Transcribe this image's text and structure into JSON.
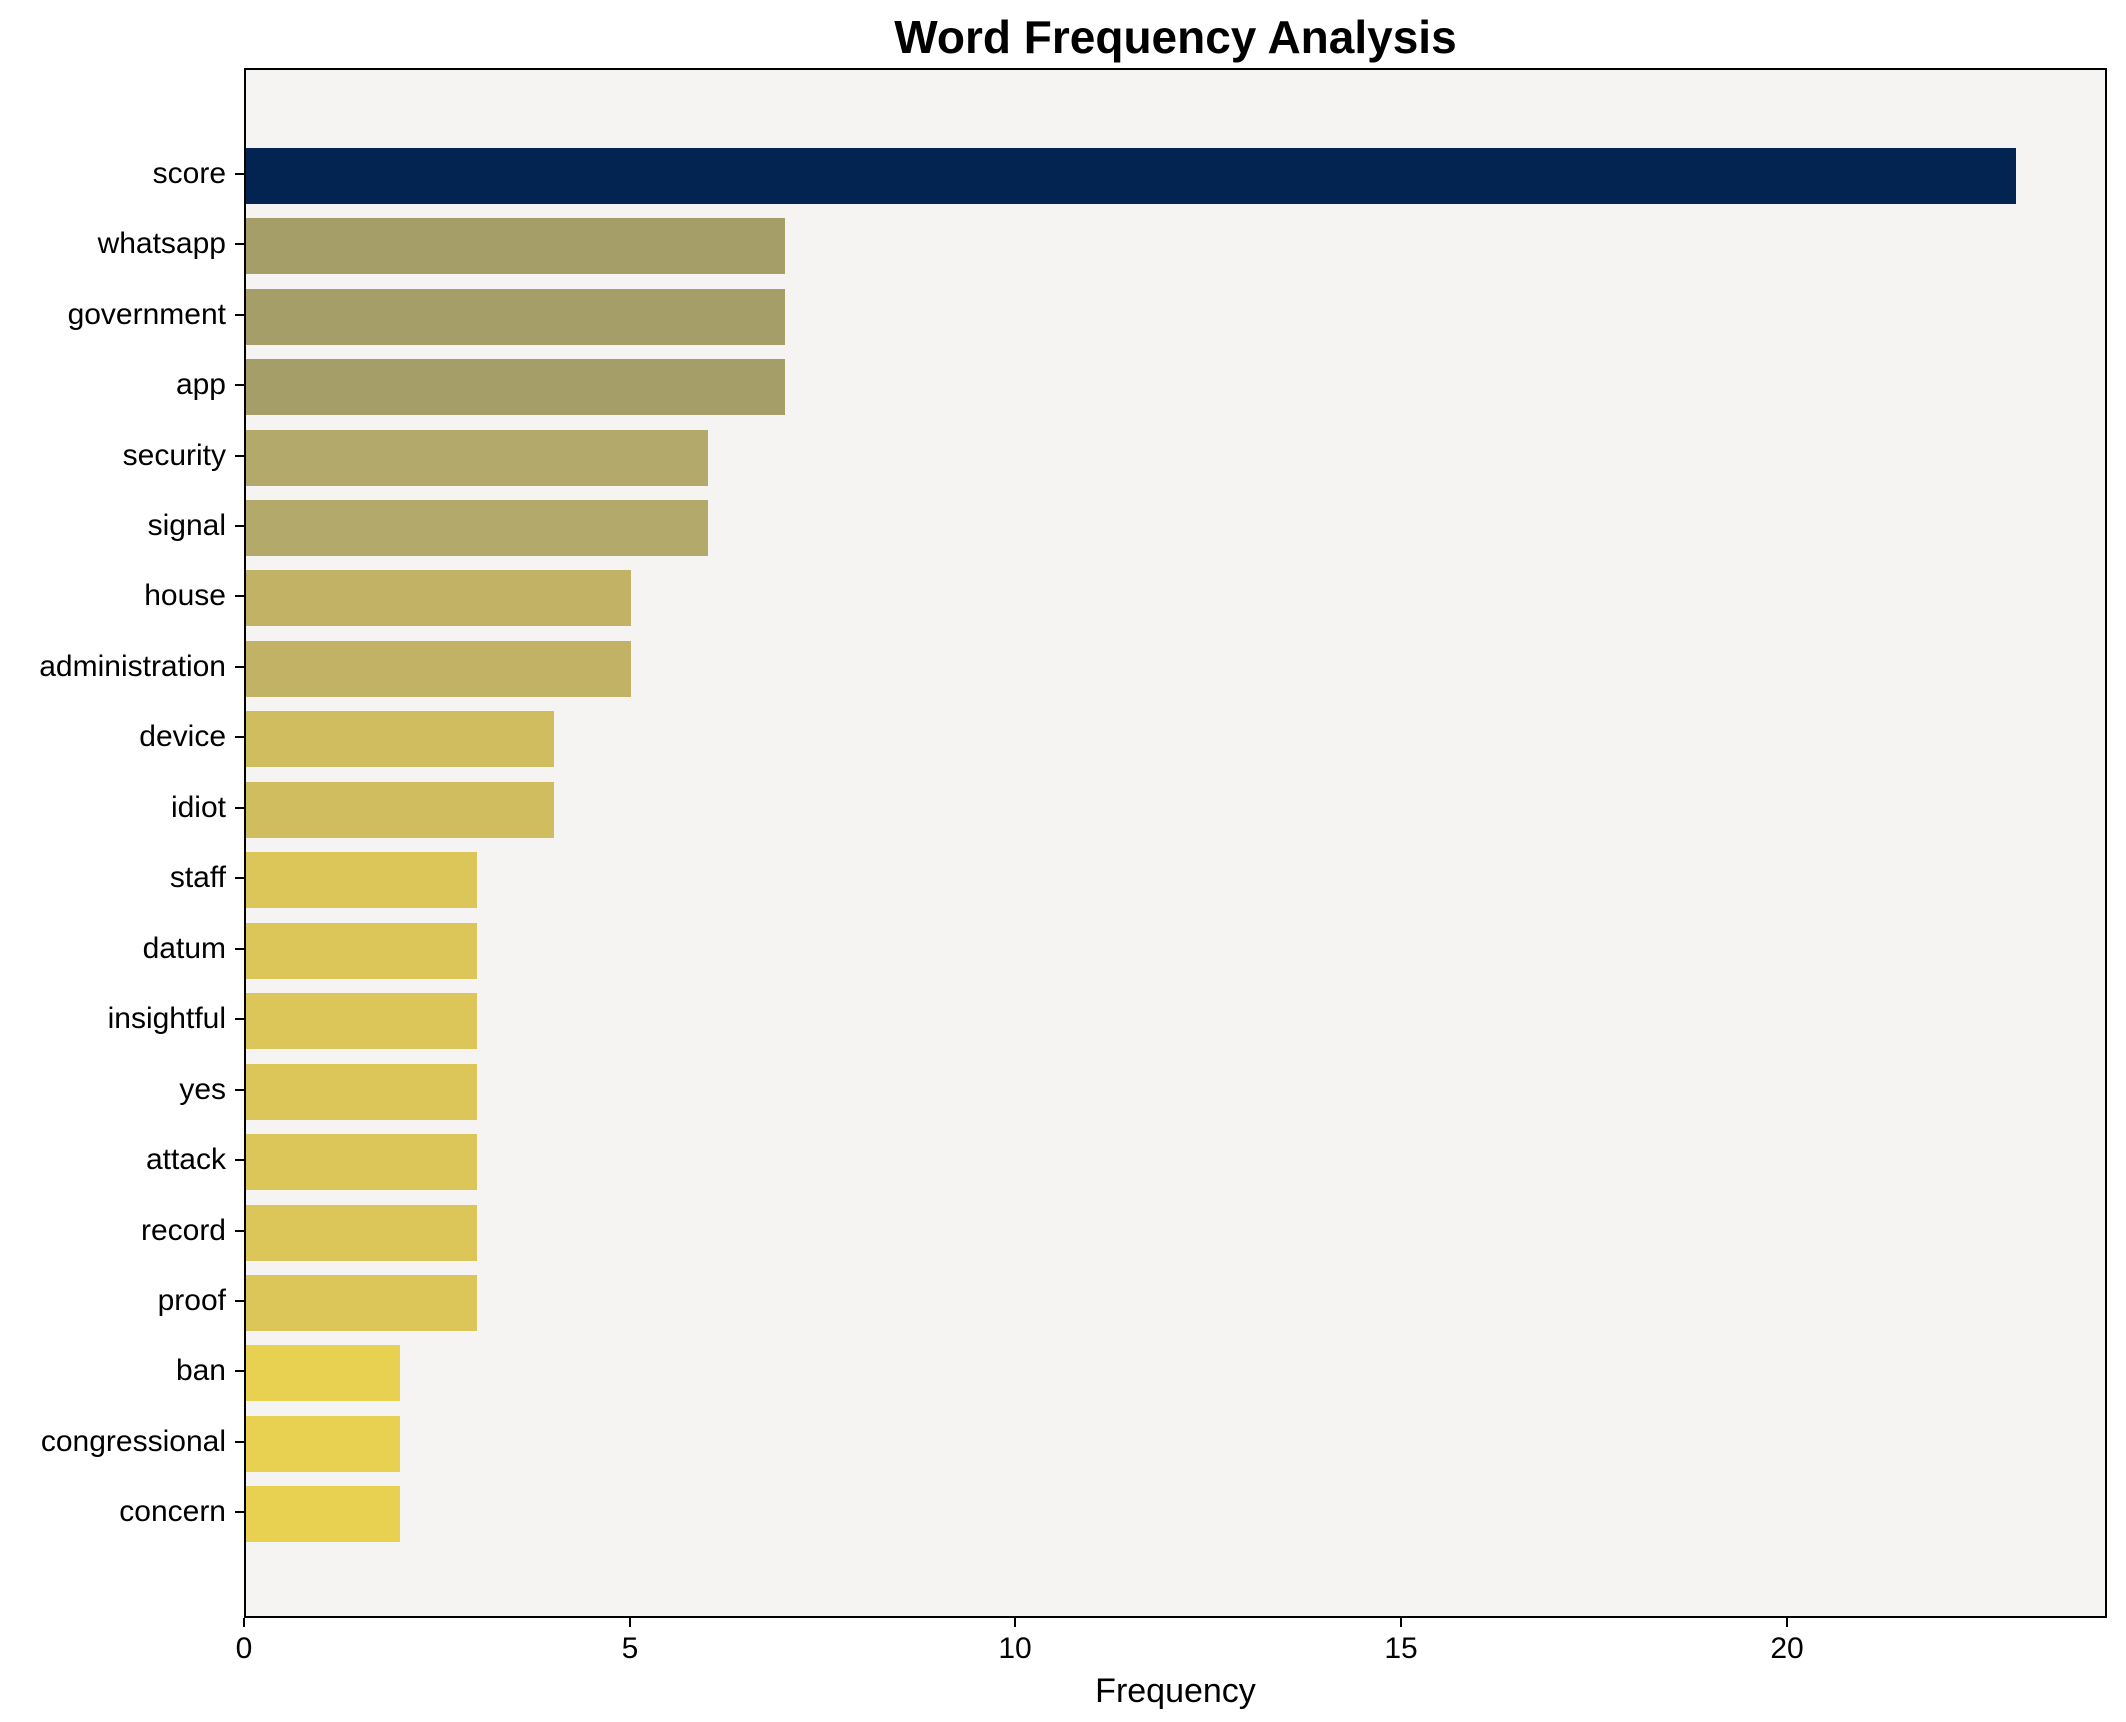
{
  "chart_data": {
    "type": "bar",
    "orientation": "horizontal",
    "title": "Word Frequency Analysis",
    "xlabel": "Frequency",
    "ylabel": "",
    "categories": [
      "score",
      "whatsapp",
      "government",
      "app",
      "security",
      "signal",
      "house",
      "administration",
      "device",
      "idiot",
      "staff",
      "datum",
      "insightful",
      "yes",
      "attack",
      "record",
      "proof",
      "ban",
      "congressional",
      "concern"
    ],
    "values": [
      23,
      7,
      7,
      7,
      6,
      6,
      5,
      5,
      4,
      4,
      3,
      3,
      3,
      3,
      3,
      3,
      3,
      2,
      2,
      2
    ],
    "bar_colors": [
      "#032350",
      "#a69e69",
      "#a69e69",
      "#a69e69",
      "#b3a96b",
      "#b3a96b",
      "#c1b266",
      "#c1b266",
      "#cfbd60",
      "#cfbd60",
      "#dcc659",
      "#dcc659",
      "#dcc659",
      "#dcc659",
      "#dcc659",
      "#dcc659",
      "#dcc659",
      "#e8d150",
      "#e8d150",
      "#e8d150"
    ],
    "x_ticks": [
      0,
      5,
      10,
      15,
      20
    ],
    "xlim": [
      0,
      24.15
    ],
    "grid": false,
    "legend": null,
    "plot_background": "#f5f4f2",
    "figure_background": "#ffffff",
    "accent_color_high": "#032350",
    "accent_color_low": "#e8d150"
  }
}
